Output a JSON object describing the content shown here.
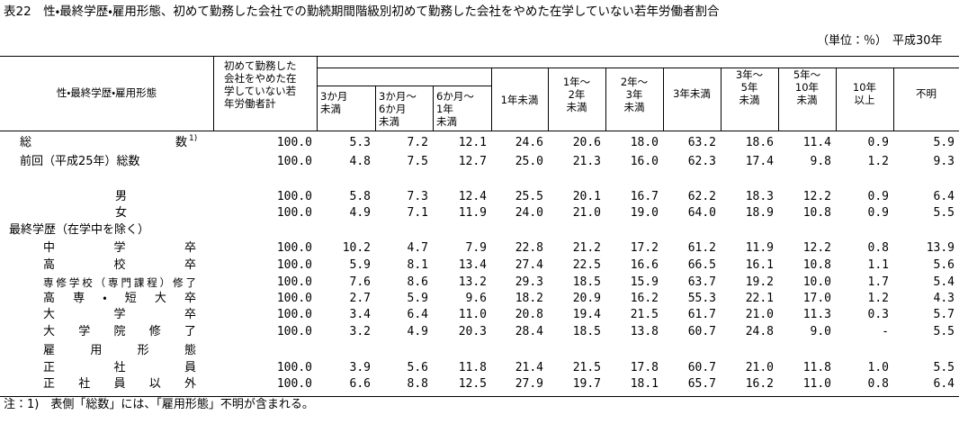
{
  "header": {
    "title": "表22　性・最終学歴・雇用形態、初めて勤務した会社での勤続期間階級別初めて勤務した会社をやめた在学していない若年労働者割合",
    "unit": "（単位：％）",
    "year": "平成30年"
  },
  "table": {
    "row_header": "性・最終学歴・雇用形態",
    "columns": [
      "初めて勤務した\n会社をやめた在\n学していない若\n年労働者計",
      "3か月\n未満",
      "3か月～\n6か月\n未満",
      "6か月～\n1年\n未満",
      "1年未満",
      "1年～\n2年\n未満",
      "2年～\n3年\n未満",
      "3年未満",
      "3年～\n5年\n未満",
      "5年～\n10年\n未満",
      "10年\n以上",
      "不明"
    ],
    "rows": [
      {
        "label": "総数",
        "note_mark": "1)",
        "values": [
          "100.0",
          "5.3",
          "7.2",
          "12.1",
          "24.6",
          "20.6",
          "18.0",
          "63.2",
          "18.6",
          "11.4",
          "0.9",
          "5.9"
        ]
      },
      {
        "label": "前回（平成25年）総数",
        "values": [
          "100.0",
          "4.8",
          "7.5",
          "12.7",
          "25.0",
          "21.3",
          "16.0",
          "62.3",
          "17.4",
          "9.8",
          "1.2",
          "9.3"
        ]
      },
      {
        "label": "男",
        "values": [
          "100.0",
          "5.8",
          "7.3",
          "12.4",
          "25.5",
          "20.1",
          "16.7",
          "62.2",
          "18.3",
          "12.2",
          "0.9",
          "6.4"
        ]
      },
      {
        "label": "女",
        "values": [
          "100.0",
          "4.9",
          "7.1",
          "11.9",
          "24.0",
          "21.0",
          "19.0",
          "64.0",
          "18.9",
          "10.8",
          "0.9",
          "5.5"
        ]
      },
      {
        "label": "最終学歴（在学中を除く）"
      },
      {
        "label": "中学卒",
        "values": [
          "100.0",
          "10.2",
          "4.7",
          "7.9",
          "22.8",
          "21.2",
          "17.2",
          "61.2",
          "11.9",
          "12.2",
          "0.8",
          "13.9"
        ]
      },
      {
        "label": "高校卒",
        "values": [
          "100.0",
          "5.9",
          "8.1",
          "13.4",
          "27.4",
          "22.5",
          "16.6",
          "66.5",
          "16.1",
          "10.8",
          "1.1",
          "5.6"
        ]
      },
      {
        "label": "専修学校（専門課程）修了",
        "values": [
          "100.0",
          "7.6",
          "8.6",
          "13.2",
          "29.3",
          "18.5",
          "15.9",
          "63.7",
          "19.2",
          "10.0",
          "1.7",
          "5.4"
        ]
      },
      {
        "label": "高専・短大卒",
        "values": [
          "100.0",
          "2.7",
          "5.9",
          "9.6",
          "18.2",
          "20.9",
          "16.2",
          "55.3",
          "22.1",
          "17.0",
          "1.2",
          "4.3"
        ]
      },
      {
        "label": "大学卒",
        "values": [
          "100.0",
          "3.4",
          "6.4",
          "11.0",
          "20.8",
          "19.4",
          "21.5",
          "61.7",
          "21.0",
          "11.3",
          "0.3",
          "5.7"
        ]
      },
      {
        "label": "大学院修了",
        "values": [
          "100.0",
          "3.2",
          "4.9",
          "20.3",
          "28.4",
          "18.5",
          "13.8",
          "60.7",
          "24.8",
          "9.0",
          "-",
          "5.5"
        ]
      },
      {
        "label": "雇用形態"
      },
      {
        "label": "正社員",
        "values": [
          "100.0",
          "3.9",
          "5.6",
          "11.8",
          "21.4",
          "21.5",
          "17.8",
          "60.7",
          "21.0",
          "11.8",
          "1.0",
          "5.5"
        ]
      },
      {
        "label": "正社員以外",
        "values": [
          "100.0",
          "6.6",
          "8.8",
          "12.5",
          "27.9",
          "19.7",
          "18.1",
          "65.7",
          "16.2",
          "11.0",
          "0.8",
          "6.4"
        ]
      }
    ]
  },
  "note": "注：1)　表側「総数」には、「雇用形態」不明が含まれる。"
}
